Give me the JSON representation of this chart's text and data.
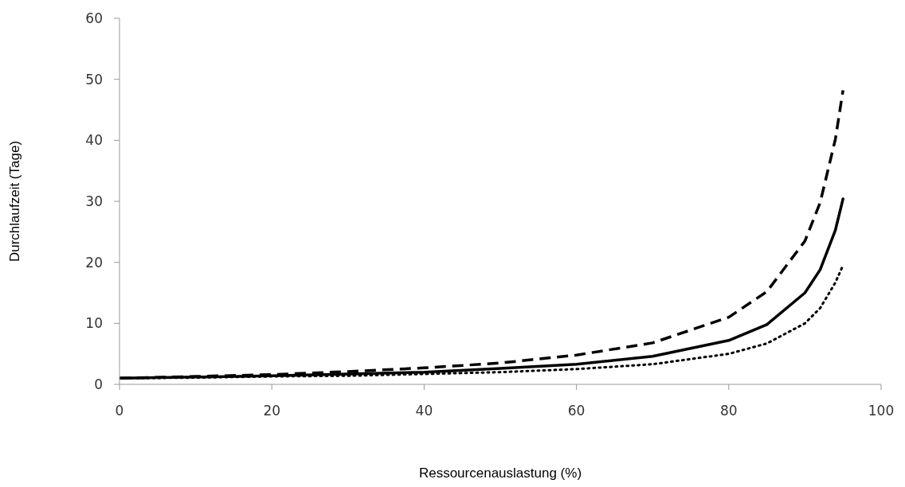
{
  "chart_data": {
    "type": "line",
    "xlabel": "Ressourcenauslastung (%)",
    "ylabel": "Durchlaufzeit (Tage)",
    "x": [
      0,
      10,
      20,
      30,
      40,
      50,
      60,
      70,
      80,
      85,
      90,
      92,
      94,
      95
    ],
    "series": [
      {
        "color": "#000000",
        "line_style": "dashed",
        "values": [
          1,
          1.3,
          1.6,
          2.1,
          2.7,
          3.5,
          4.8,
          6.8,
          11,
          15.2,
          23.5,
          29.8,
          40.2,
          48.2
        ]
      },
      {
        "color": "#000000",
        "line_style": "solid",
        "values": [
          1,
          1.2,
          1.4,
          1.7,
          2,
          2.6,
          3.3,
          4.6,
          7.2,
          9.8,
          15,
          18.8,
          25.3,
          30.4
        ]
      },
      {
        "color": "#000000",
        "line_style": "dotted",
        "values": [
          1,
          1.1,
          1.3,
          1.4,
          1.7,
          2,
          2.5,
          3.3,
          5,
          6.7,
          10,
          12.5,
          16.7,
          19.5
        ]
      }
    ],
    "xlim": [
      0,
      100
    ],
    "xticks": [
      0,
      20,
      40,
      60,
      80,
      100
    ],
    "ylim": [
      0,
      60
    ],
    "yticks": [
      0,
      10,
      20,
      30,
      40,
      50,
      60
    ],
    "grid": false,
    "legend": false,
    "marker": "none"
  }
}
